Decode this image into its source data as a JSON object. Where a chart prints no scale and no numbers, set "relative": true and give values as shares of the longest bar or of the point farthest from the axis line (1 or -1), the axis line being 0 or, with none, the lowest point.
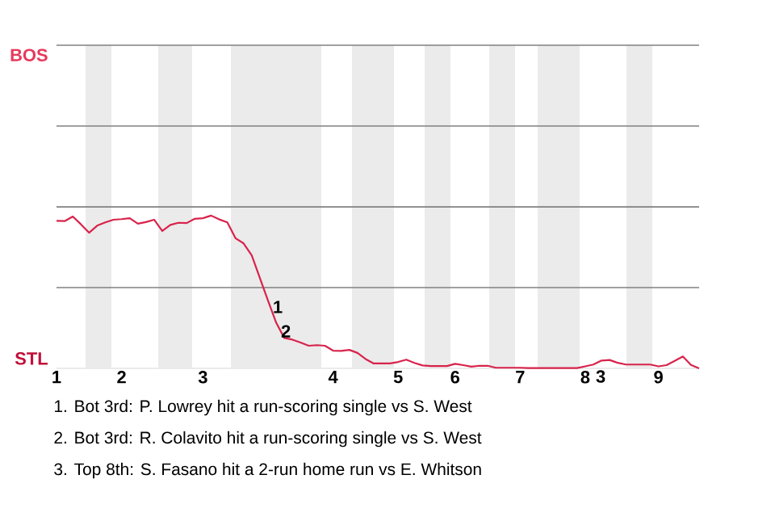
{
  "chart_data": {
    "type": "line",
    "relative": true,
    "categories": [
      "1",
      null,
      null,
      null,
      null,
      null,
      null,
      null,
      "2",
      null,
      null,
      null,
      null,
      null,
      null,
      null,
      null,
      null,
      "3",
      null,
      null,
      null,
      null,
      null,
      null,
      null,
      null,
      null,
      null,
      null,
      null,
      null,
      null,
      null,
      "4",
      null,
      null,
      null,
      null,
      null,
      null,
      null,
      "5",
      null,
      null,
      null,
      null,
      null,
      null,
      "6",
      null,
      null,
      null,
      null,
      null,
      null,
      null,
      "7",
      null,
      null,
      null,
      null,
      null,
      null,
      null,
      "8",
      null,
      null,
      null,
      null,
      null,
      null,
      null,
      null,
      "9",
      null,
      null,
      null,
      null,
      null
    ],
    "marker": "none",
    "line_style": "solid",
    "ref_lines": [
      {
        "axis": "y",
        "value": 0.529,
        "color": "#808080"
      },
      {
        "axis": "y",
        "value": 1.057,
        "color": "#808080"
      },
      {
        "axis": "y",
        "value": 1.586,
        "color": "#808080"
      },
      {
        "axis": "y",
        "value": 2.115,
        "color": "#808080"
      }
    ],
    "series": [
      {
        "color": "#d8234b",
        "values": [
          0.966,
          0.964,
          0.994,
          0.943,
          0.888,
          0.934,
          0.956,
          0.973,
          0.977,
          0.983,
          0.947,
          0.958,
          0.973,
          0.899,
          0.939,
          0.953,
          0.951,
          0.979,
          0.983,
          1,
          0.975,
          0.956,
          0.852,
          0.818,
          0.74,
          0.592,
          0.444,
          0.3,
          0.199,
          0.188,
          0.169,
          0.148,
          0.152,
          0.148,
          0.116,
          0.114,
          0.121,
          0.101,
          0.061,
          0.032,
          0.032,
          0.032,
          0.042,
          0.057,
          0.036,
          0.019,
          0.015,
          0.015,
          0.015,
          0.03,
          0.021,
          0.011,
          0.017,
          0.017,
          0.004,
          0.004,
          0.004,
          0.004,
          0.002,
          0.002,
          0.002,
          0.002,
          0.002,
          0.002,
          0.002,
          0.013,
          0.025,
          0.051,
          0.055,
          0.036,
          0.025,
          0.025,
          0.025,
          0.025,
          0.013,
          0.021,
          0.049,
          0.078,
          0.023,
          0
        ]
      }
    ],
    "annotations": [
      "BOS",
      "STL",
      "1",
      "2",
      "3",
      "1. Bot 3rd: P. Lowrey hit a run-scoring single vs S. West",
      "2. Bot 3rd: R. Colavito hit a run-scoring single vs S. West",
      "3. Top 8th: S. Fasano hit a 2-run home run vs E. Whitson"
    ]
  }
}
